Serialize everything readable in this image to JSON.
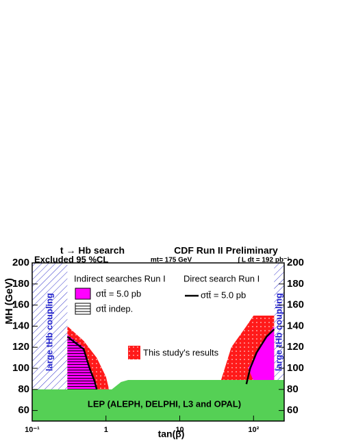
{
  "chart_data": {
    "type": "region",
    "title": "t → Hb search",
    "subtitle": "CDF Run II Preliminary",
    "annotations": {
      "excluded": "Excluded 95 %CL",
      "mass": "mt= 175 GeV",
      "lumi": "∫ L dt = 192 pb⁻¹",
      "left_band": "large tHb coupling",
      "right_band": "large tHb coupling",
      "lep": "LEP (ALEPH, DELPHI, L3 and OPAL)"
    },
    "x_label": "tan(β)",
    "y_label": "MH (GeV)",
    "log_x": true,
    "xlim": [
      0.1,
      260
    ],
    "xticks": [
      {
        "value": 0.1,
        "label": "10⁻¹"
      },
      {
        "value": 1,
        "label": "1"
      },
      {
        "value": 10,
        "label": "10"
      },
      {
        "value": 100,
        "label": "10²"
      }
    ],
    "ylim": [
      50,
      200
    ],
    "yticks": [
      60,
      80,
      100,
      120,
      140,
      160,
      180,
      200
    ],
    "legend": {
      "indirect": "Indirect searches Run I",
      "indirect_sigma": "σtt̄ = 5.0 pb",
      "indirect_indep": "σtt̄ indep.",
      "direct": "Direct search Run I",
      "direct_sigma": "σtt̄ = 5.0 pb",
      "study": "This study's results"
    },
    "regions": [
      {
        "color": "#3333cc",
        "hatch": "diag",
        "x": [
          0.1,
          0.3,
          0.3,
          0.1
        ],
        "y": [
          80,
          80,
          200,
          200
        ]
      },
      {
        "color": "#3333cc",
        "hatch": "diag",
        "x": [
          190,
          260,
          260,
          190
        ],
        "y": [
          80,
          80,
          200,
          200
        ]
      },
      {
        "color": "#ff1a1a",
        "hatch": "dots",
        "x": [
          0.3,
          0.5,
          0.75,
          1.0,
          1.1,
          0.3
        ],
        "y": [
          140,
          126,
          110,
          92,
          80,
          80
        ]
      },
      {
        "color": "#ff00ff",
        "hatch": "horizontal",
        "x": [
          0.3,
          0.5,
          0.6,
          0.7,
          0.75,
          0.3
        ],
        "y": [
          132,
          120,
          102,
          88,
          80,
          80
        ]
      },
      {
        "color": "#ff1a1a",
        "hatch": "dots",
        "x": [
          36,
          50,
          80,
          100,
          190,
          190,
          36
        ],
        "y": [
          88,
          120,
          140,
          150,
          150,
          88,
          88
        ]
      },
      {
        "color": "#ff00ff",
        "hatch": "none",
        "x": [
          85,
          120,
          190,
          190,
          100
        ],
        "y": [
          100,
          120,
          140,
          88,
          88
        ]
      },
      {
        "color": "#55d055",
        "hatch": "none",
        "x": [
          0.1,
          0.1,
          1.2,
          1.6,
          2,
          260,
          260
        ],
        "y": [
          50,
          80,
          80,
          87,
          89,
          89,
          50
        ]
      }
    ],
    "lines": [
      {
        "color": "#000000",
        "x": [
          0.3,
          0.5,
          0.6,
          0.7,
          0.75
        ],
        "y": [
          130,
          118,
          100,
          88,
          80
        ]
      },
      {
        "color": "#000000",
        "x": [
          80,
          90,
          110,
          150,
          190
        ],
        "y": [
          85,
          100,
          115,
          130,
          137
        ]
      }
    ]
  }
}
